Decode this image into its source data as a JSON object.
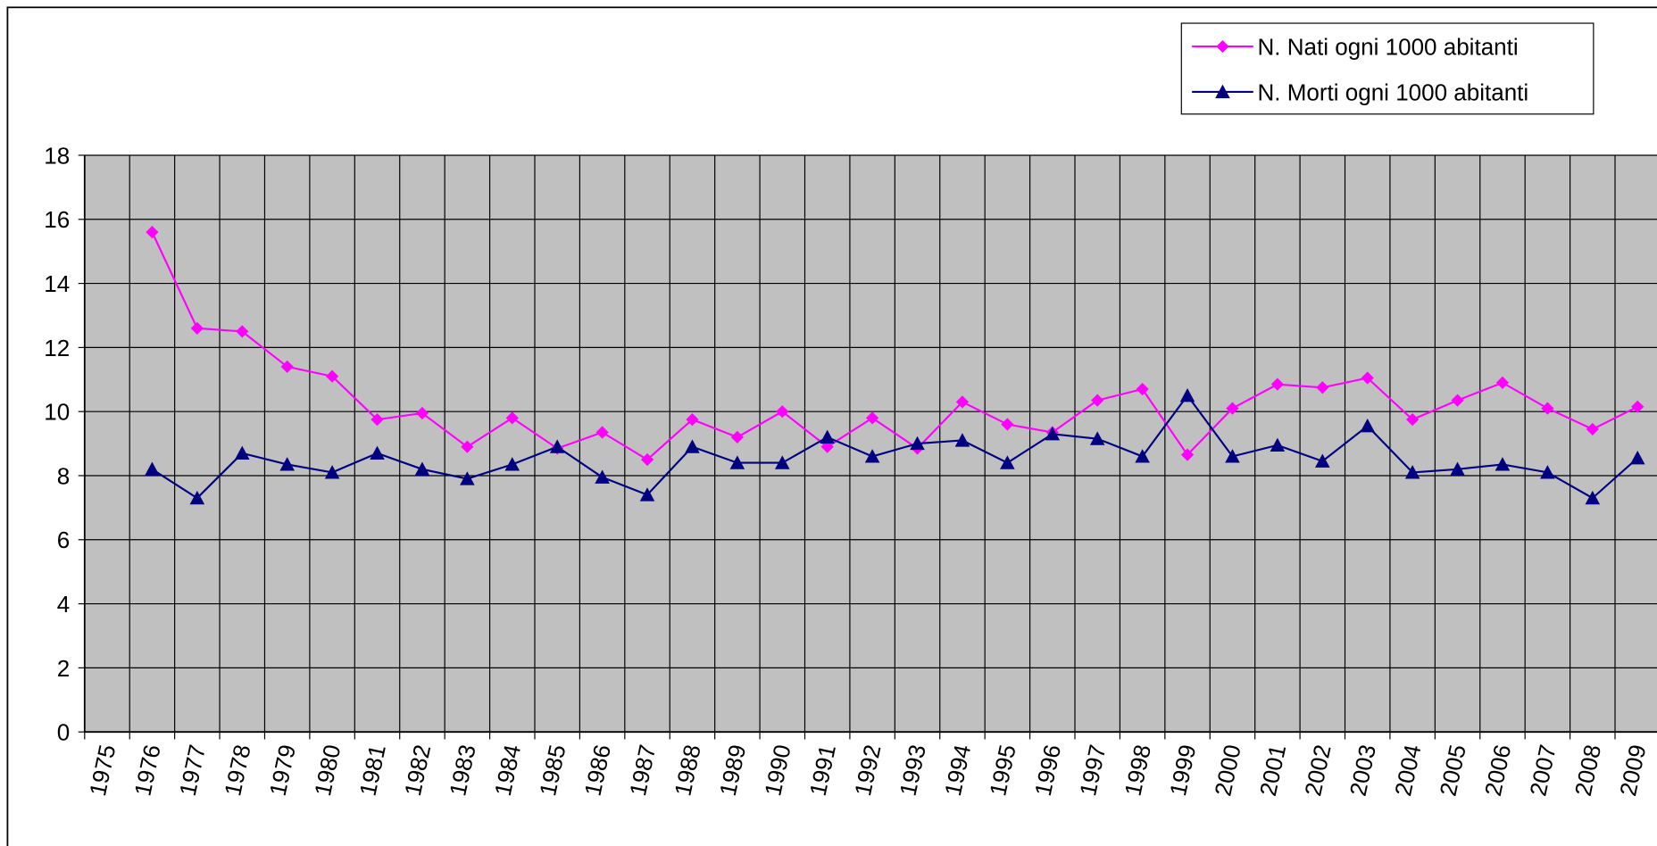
{
  "chart_data": {
    "type": "line",
    "categories": [
      "1975",
      "1976",
      "1977",
      "1978",
      "1979",
      "1980",
      "1981",
      "1982",
      "1983",
      "1984",
      "1985",
      "1986",
      "1987",
      "1988",
      "1989",
      "1990",
      "1991",
      "1992",
      "1993",
      "1994",
      "1995",
      "1996",
      "1997",
      "1998",
      "1999",
      "2000",
      "2001",
      "2002",
      "2003",
      "2004",
      "2005",
      "2006",
      "2007",
      "2008",
      "2009"
    ],
    "series": [
      {
        "name": "N. Nati ogni 1000 abitanti",
        "color": "#ff00ff",
        "marker": "diamond",
        "values": [
          null,
          15.6,
          12.6,
          12.5,
          11.4,
          11.1,
          9.75,
          9.95,
          8.9,
          9.8,
          8.85,
          9.35,
          8.5,
          9.75,
          9.2,
          10.0,
          8.9,
          9.8,
          8.85,
          10.3,
          9.6,
          9.35,
          10.35,
          10.7,
          8.65,
          10.1,
          10.85,
          10.75,
          11.05,
          9.75,
          10.35,
          10.9,
          10.1,
          9.45,
          10.15
        ]
      },
      {
        "name": "N. Morti ogni 1000 abitanti",
        "color": "#000080",
        "marker": "triangle",
        "values": [
          null,
          8.2,
          7.3,
          8.7,
          8.35,
          8.1,
          8.7,
          8.2,
          7.9,
          8.35,
          8.9,
          7.95,
          7.4,
          8.9,
          8.4,
          8.4,
          9.2,
          8.6,
          9.0,
          9.1,
          8.4,
          9.3,
          9.15,
          8.6,
          10.5,
          8.6,
          8.95,
          8.45,
          9.55,
          8.1,
          8.2,
          8.35,
          8.1,
          7.3,
          8.55
        ]
      }
    ],
    "ylim": [
      0,
      18
    ],
    "yticks": [
      0,
      2,
      4,
      6,
      8,
      10,
      12,
      14,
      16,
      18
    ],
    "grid": true,
    "legend": "top-right",
    "plot_background": "#c0c0c0"
  }
}
